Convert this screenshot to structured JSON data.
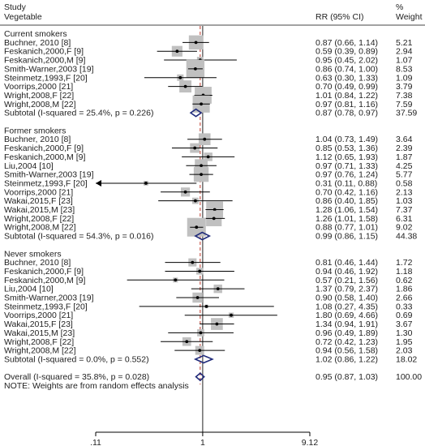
{
  "header": {
    "col1_line1": "Study",
    "col1_line2": "Vegetable",
    "col2": "RR (95% CI)",
    "col3_line1": "%",
    "col3_line2": "Weight"
  },
  "chart_data": {
    "type": "forest",
    "x_scale": "log",
    "x_ticks": [
      {
        "value": 0.11,
        "label": ".11"
      },
      {
        "value": 1,
        "label": "1"
      },
      {
        "value": 9.12,
        "label": "9.12"
      }
    ],
    "x_min": 0.11,
    "x_max": 9.12,
    "null_value": 1,
    "overall_reference": 0.95,
    "groups": [
      {
        "name": "Current smokers",
        "studies": [
          {
            "label": "Buchner, 2010 [8]",
            "rr": 0.87,
            "lo": 0.66,
            "hi": 1.14,
            "weight": 5.21,
            "ci_text": "0.87 (0.66, 1.14)",
            "weight_text": "5.21"
          },
          {
            "label": "Feskanich,2000,F [9]",
            "rr": 0.59,
            "lo": 0.39,
            "hi": 0.89,
            "weight": 2.94,
            "ci_text": "0.59 (0.39, 0.89)",
            "weight_text": "2.94"
          },
          {
            "label": "Feskanich,2000,M [9]",
            "rr": 0.95,
            "lo": 0.45,
            "hi": 2.02,
            "weight": 1.07,
            "ci_text": "0.95 (0.45, 2.02)",
            "weight_text": "1.07"
          },
          {
            "label": "Smith-Warner,2003 [19]",
            "rr": 0.86,
            "lo": 0.74,
            "hi": 1.0,
            "weight": 8.53,
            "ci_text": "0.86 (0.74, 1.00)",
            "weight_text": "8.53"
          },
          {
            "label": "Steinmetz,1993,F [20]",
            "rr": 0.63,
            "lo": 0.3,
            "hi": 1.33,
            "weight": 1.09,
            "ci_text": "0.63 (0.30, 1.33)",
            "weight_text": "1.09"
          },
          {
            "label": "Voorrips,2000 [21]",
            "rr": 0.7,
            "lo": 0.49,
            "hi": 0.99,
            "weight": 3.79,
            "ci_text": "0.70 (0.49, 0.99)",
            "weight_text": "3.79"
          },
          {
            "label": "Wright,2008,F [22]",
            "rr": 1.01,
            "lo": 0.84,
            "hi": 1.22,
            "weight": 7.38,
            "ci_text": "1.01 (0.84, 1.22)",
            "weight_text": "7.38"
          },
          {
            "label": "Wright,2008,M [22]",
            "rr": 0.97,
            "lo": 0.81,
            "hi": 1.16,
            "weight": 7.59,
            "ci_text": "0.97 (0.81, 1.16)",
            "weight_text": "7.59"
          }
        ],
        "subtotal": {
          "label": "Subtotal  (I-squared = 25.4%, p = 0.226)",
          "rr": 0.87,
          "lo": 0.78,
          "hi": 0.97,
          "ci_text": "0.87 (0.78, 0.97)",
          "weight_text": "37.59"
        }
      },
      {
        "name": "Former smokers",
        "studies": [
          {
            "label": "Buchner, 2010 [8]",
            "rr": 1.04,
            "lo": 0.73,
            "hi": 1.49,
            "weight": 3.64,
            "ci_text": "1.04 (0.73, 1.49)",
            "weight_text": "3.64"
          },
          {
            "label": "Feskanich,2000,F [9]",
            "rr": 0.85,
            "lo": 0.53,
            "hi": 1.36,
            "weight": 2.39,
            "ci_text": "0.85 (0.53, 1.36)",
            "weight_text": "2.39"
          },
          {
            "label": "Feskanich,2000,M [9]",
            "rr": 1.12,
            "lo": 0.65,
            "hi": 1.93,
            "weight": 1.87,
            "ci_text": "1.12 (0.65, 1.93)",
            "weight_text": "1.87"
          },
          {
            "label": "Liu,2004 [10]",
            "rr": 0.97,
            "lo": 0.71,
            "hi": 1.33,
            "weight": 4.25,
            "ci_text": "0.97 (0.71, 1.33)",
            "weight_text": "4.25"
          },
          {
            "label": "Smith-Warner,2003 [19]",
            "rr": 0.97,
            "lo": 0.76,
            "hi": 1.24,
            "weight": 5.77,
            "ci_text": "0.97 (0.76, 1.24)",
            "weight_text": "5.77"
          },
          {
            "label": "Steinmetz,1993,F [20]",
            "rr": 0.31,
            "lo": 0.11,
            "hi": 0.88,
            "weight": 0.58,
            "ci_text": "0.31 (0.11, 0.88)",
            "weight_text": "0.58"
          },
          {
            "label": "Voorrips,2000 [21]",
            "rr": 0.7,
            "lo": 0.42,
            "hi": 1.16,
            "weight": 2.13,
            "ci_text": "0.70 (0.42, 1.16)",
            "weight_text": "2.13"
          },
          {
            "label": "Wakai,2015,F [23]",
            "rr": 0.86,
            "lo": 0.4,
            "hi": 1.85,
            "weight": 1.03,
            "ci_text": "0.86 (0.40, 1.85)",
            "weight_text": "1.03"
          },
          {
            "label": "Wakai,2015,M [23]",
            "rr": 1.28,
            "lo": 1.06,
            "hi": 1.54,
            "weight": 7.37,
            "ci_text": "1.28 (1.06, 1.54)",
            "weight_text": "7.37"
          },
          {
            "label": "Wright,2008,F [22]",
            "rr": 1.26,
            "lo": 1.01,
            "hi": 1.58,
            "weight": 6.31,
            "ci_text": "1.26 (1.01, 1.58)",
            "weight_text": "6.31"
          },
          {
            "label": "Wright,2008,M [22]",
            "rr": 0.88,
            "lo": 0.77,
            "hi": 1.01,
            "weight": 9.02,
            "ci_text": "0.88 (0.77, 1.01)",
            "weight_text": "9.02"
          }
        ],
        "subtotal": {
          "label": "Subtotal  (I-squared = 54.3%, p = 0.016)",
          "rr": 0.99,
          "lo": 0.86,
          "hi": 1.15,
          "ci_text": "0.99 (0.86, 1.15)",
          "weight_text": "44.38"
        }
      },
      {
        "name": "Never smokers",
        "studies": [
          {
            "label": "Buchner, 2010 [8]",
            "rr": 0.81,
            "lo": 0.46,
            "hi": 1.44,
            "weight": 1.72,
            "ci_text": "0.81 (0.46, 1.44)",
            "weight_text": "1.72"
          },
          {
            "label": "Feskanich,2000,F [9]",
            "rr": 0.94,
            "lo": 0.46,
            "hi": 1.92,
            "weight": 1.18,
            "ci_text": "0.94 (0.46, 1.92)",
            "weight_text": "1.18"
          },
          {
            "label": "Feskanich,2000,M [9]",
            "rr": 0.57,
            "lo": 0.21,
            "hi": 1.56,
            "weight": 0.62,
            "ci_text": "0.57 (0.21, 1.56)",
            "weight_text": "0.62"
          },
          {
            "label": "Liu,2004 [10]",
            "rr": 1.37,
            "lo": 0.79,
            "hi": 2.37,
            "weight": 1.86,
            "ci_text": "1.37 (0.79, 2.37)",
            "weight_text": "1.86"
          },
          {
            "label": "Smith-Warner,2003 [19]",
            "rr": 0.9,
            "lo": 0.58,
            "hi": 1.4,
            "weight": 2.66,
            "ci_text": "0.90 (0.58, 1.40)",
            "weight_text": "2.66"
          },
          {
            "label": "Steinmetz,1993,F [20]",
            "rr": 1.08,
            "lo": 0.27,
            "hi": 4.35,
            "weight": 0.33,
            "ci_text": "1.08 (0.27, 4.35)",
            "weight_text": "0.33"
          },
          {
            "label": "Voorrips,2000 [21]",
            "rr": 1.8,
            "lo": 0.69,
            "hi": 4.66,
            "weight": 0.69,
            "ci_text": "1.80 (0.69, 4.66)",
            "weight_text": "0.69"
          },
          {
            "label": "Wakai,2015,F [23]",
            "rr": 1.34,
            "lo": 0.94,
            "hi": 1.91,
            "weight": 3.67,
            "ci_text": "1.34 (0.94, 1.91)",
            "weight_text": "3.67"
          },
          {
            "label": "Wakai,2015,M [23]",
            "rr": 0.96,
            "lo": 0.49,
            "hi": 1.89,
            "weight": 1.3,
            "ci_text": "0.96 (0.49, 1.89)",
            "weight_text": "1.30"
          },
          {
            "label": "Wright,2008,F [22]",
            "rr": 0.72,
            "lo": 0.42,
            "hi": 1.23,
            "weight": 1.95,
            "ci_text": "0.72 (0.42, 1.23)",
            "weight_text": "1.95"
          },
          {
            "label": "Wright,2008,M [22]",
            "rr": 0.94,
            "lo": 0.56,
            "hi": 1.58,
            "weight": 2.03,
            "ci_text": "0.94 (0.56, 1.58)",
            "weight_text": "2.03"
          }
        ],
        "subtotal": {
          "label": "Subtotal  (I-squared = 0.0%, p = 0.552)",
          "rr": 1.02,
          "lo": 0.86,
          "hi": 1.22,
          "ci_text": "1.02 (0.86, 1.22)",
          "weight_text": "18.02"
        }
      }
    ],
    "overall": {
      "label": "Overall  (I-squared = 35.8%, p = 0.028)",
      "rr": 0.95,
      "lo": 0.87,
      "hi": 1.03,
      "ci_text": "0.95 (0.87, 1.03)",
      "weight_text": "100.00"
    },
    "note": "NOTE: Weights are from random effects analysis",
    "colors": {
      "box": "#c0c0c0",
      "diamond": "#1f2a7a",
      "null_line": "#222222",
      "overall_line": "#c0392b",
      "text": "#222222"
    }
  }
}
